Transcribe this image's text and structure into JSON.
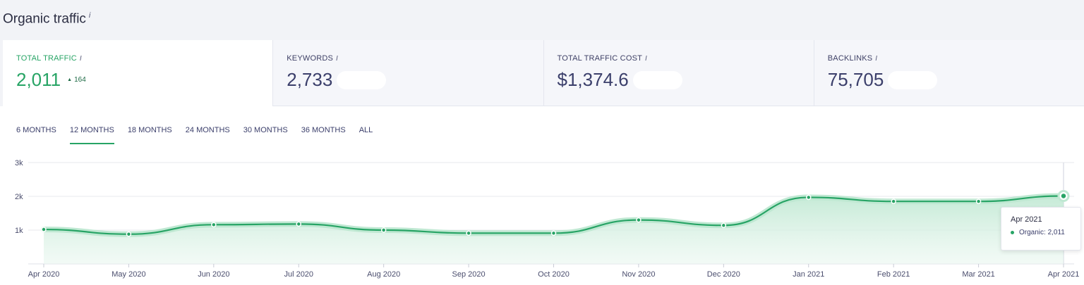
{
  "section": {
    "title": "Organic traffic",
    "info": "i"
  },
  "stats": [
    {
      "label": "TOTAL TRAFFIC",
      "info": "i",
      "value": "2,011",
      "delta": "164",
      "delta_direction": "up"
    },
    {
      "label": "KEYWORDS",
      "info": "i",
      "value": "2,733"
    },
    {
      "label": "TOTAL TRAFFIC COST",
      "info": "i",
      "value": "$1,374.6"
    },
    {
      "label": "BACKLINKS",
      "info": "i",
      "value": "75,705"
    }
  ],
  "tabs": [
    "6 MONTHS",
    "12 MONTHS",
    "18 MONTHS",
    "24 MONTHS",
    "30 MONTHS",
    "36 MONTHS",
    "ALL"
  ],
  "active_tab": "12 MONTHS",
  "colors": {
    "accent": "#27a465",
    "area": "#d8f1e3",
    "text": "#3b3f6b"
  },
  "tooltip": {
    "title": "Apr 2021",
    "label": "Organic",
    "value": "2,011",
    "text": "Organic: 2,011"
  },
  "chart_data": {
    "type": "area",
    "title": "",
    "xlabel": "",
    "ylabel": "",
    "x": [
      "Apr 2020",
      "May 2020",
      "Jun 2020",
      "Jul 2020",
      "Aug 2020",
      "Sep 2020",
      "Oct 2020",
      "Nov 2020",
      "Dec 2020",
      "Jan 2021",
      "Feb 2021",
      "Mar 2021",
      "Apr 2021"
    ],
    "y_ticks": [
      "3k",
      "2k",
      "1k"
    ],
    "ylim": [
      0,
      3000
    ],
    "grid": true,
    "series": [
      {
        "name": "Organic",
        "values": [
          1020,
          880,
          1160,
          1180,
          1000,
          910,
          910,
          1300,
          1140,
          1970,
          1850,
          1850,
          2011
        ]
      }
    ]
  }
}
